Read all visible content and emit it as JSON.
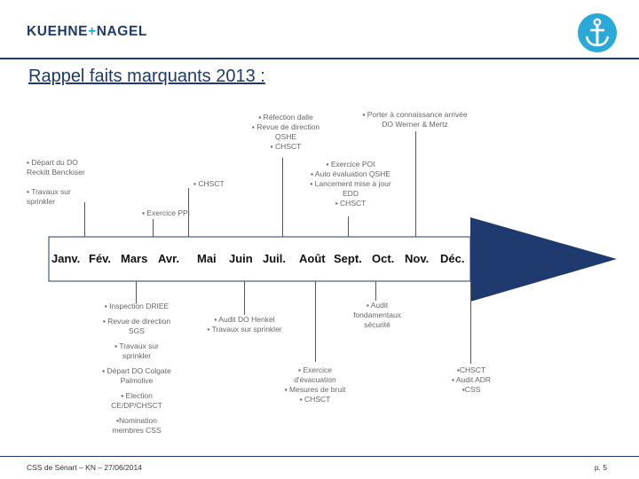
{
  "header": {
    "logo_left": "KUEHNE",
    "logo_plus": "+",
    "logo_right": "NAGEL",
    "anchor_icon": "anchor-icon",
    "accent_color": "#2aa9d9",
    "brand_color": "#1e3a6e"
  },
  "title": "Rappel faits marquants 2013 :",
  "months": [
    "Janv.",
    "Fév.",
    "Mars",
    "Avr.",
    "Mai",
    "Juin",
    "Juil.",
    "Août",
    "Sept.",
    "Oct.",
    "Nov.",
    "Déc."
  ],
  "above": {
    "jan": [
      "▪ Départ du DO",
      "Reckitt Benckiser",
      "",
      "▪ Travaux sur",
      "sprinkler"
    ],
    "mar": [
      "▪ Exercice PPI"
    ],
    "apr": [
      "▪ CHSCT"
    ],
    "jun": [
      "▪ Réfection dalle",
      "▪ Revue de direction",
      "QSHE",
      "▪ CHSCT"
    ],
    "aug": [
      "▪ Exercice POI",
      "▪ Auto évaluation  QSHE",
      "▪ Lancement mise à jour",
      "EDD",
      "▪ CHSCT"
    ],
    "sep": [
      "▪ Porter à connaissance arrivée",
      "DO Werner & Mertz"
    ]
  },
  "below": {
    "mar": [
      "▪ Inspection  DRIEE",
      "",
      "▪ Revue de direction",
      "SGS",
      "",
      "▪ Travaux sur",
      "sprinkler",
      "",
      "▪ Départ DO Colgate",
      "Palmolive",
      "",
      "▪ Election",
      "CE/DP/CHSCT",
      "",
      "▪Nomination",
      "membres CSS"
    ],
    "jun": [
      "▪ Audit DO Henkel",
      "▪ Travaux sur sprinkler"
    ],
    "sep": [
      "▪ Audit",
      "fondamentaux",
      "sécurité"
    ],
    "aug": [
      "▪ Exercice",
      "d'évacuation",
      "▪ Mesures de bruit",
      "▪ CHSCT"
    ],
    "dec": [
      "▪CHSCT",
      "▪ Audit ADR",
      "▪CSS"
    ]
  },
  "footer": {
    "left": "CSS de Sénart – KN – 27/06/2014",
    "right": "p. 5"
  }
}
